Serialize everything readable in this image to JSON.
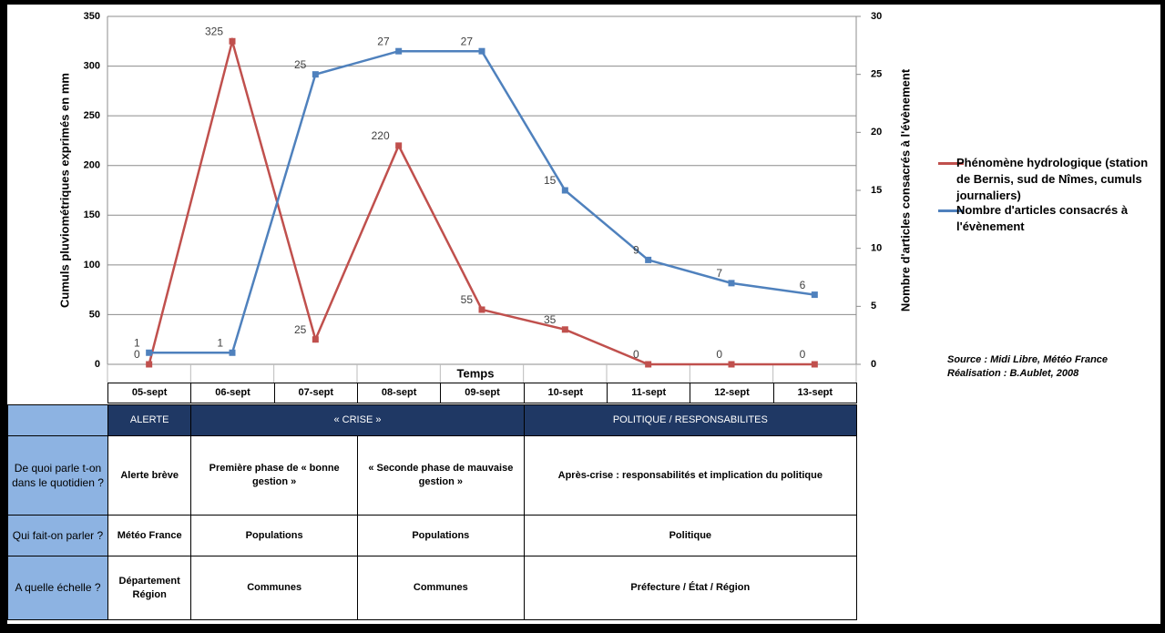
{
  "chart_data": {
    "type": "line",
    "x_label": "Temps",
    "y_label": "Cumuls pluviométriques exprimés en mm",
    "y2_label": "Nombre d'articles consacrés à l'évènement",
    "categories": [
      "05-sept",
      "06-sept",
      "07-sept",
      "08-sept",
      "09-sept",
      "10-sept",
      "11-sept",
      "12-sept",
      "13-sept"
    ],
    "series": [
      {
        "name": "Phénomène hydrologique (station de Bernis, sud de Nîmes, cumuls journaliers)",
        "color": "#c0504d",
        "values": [
          0,
          325,
          25,
          220,
          55,
          35,
          0,
          0,
          0
        ]
      },
      {
        "name": "Nombre d'articles consacrés à l'évènement",
        "color": "#4f81bd",
        "axis": "y2",
        "values": [
          1,
          1,
          25,
          27,
          27,
          15,
          9,
          7,
          6
        ]
      }
    ],
    "ylim": [
      0,
      350
    ],
    "yticks": [
      0,
      50,
      100,
      150,
      200,
      250,
      300,
      350
    ],
    "y2lim": [
      0,
      30
    ],
    "y2ticks": [
      0,
      5,
      10,
      15,
      20,
      25,
      30
    ],
    "grid": true,
    "legend": "right",
    "data_labels": true
  },
  "source": "Source : Midi Libre, Météo France",
  "credit": "Réalisation : B.Aublet, 2008",
  "table": {
    "columns": [
      "ALERTE",
      "« CRISE »",
      "POLITIQUE / RESPONSABILITES"
    ],
    "rows": [
      {
        "header": "De quoi parle t-on dans le quotidien ?",
        "cells": [
          "Alerte brève",
          "Première phase de « bonne gestion »",
          "« Seconde phase de mauvaise gestion »",
          "Après-crise : responsabilités et implication du politique"
        ]
      },
      {
        "header": "Qui fait-on parler ?",
        "cells": [
          "Météo France",
          "Populations",
          "Populations",
          "Politique"
        ]
      },
      {
        "header": "A quelle échelle ?",
        "cells": [
          "Département Région",
          "Communes",
          "Communes",
          "Préfecture / État / Région"
        ]
      }
    ]
  }
}
